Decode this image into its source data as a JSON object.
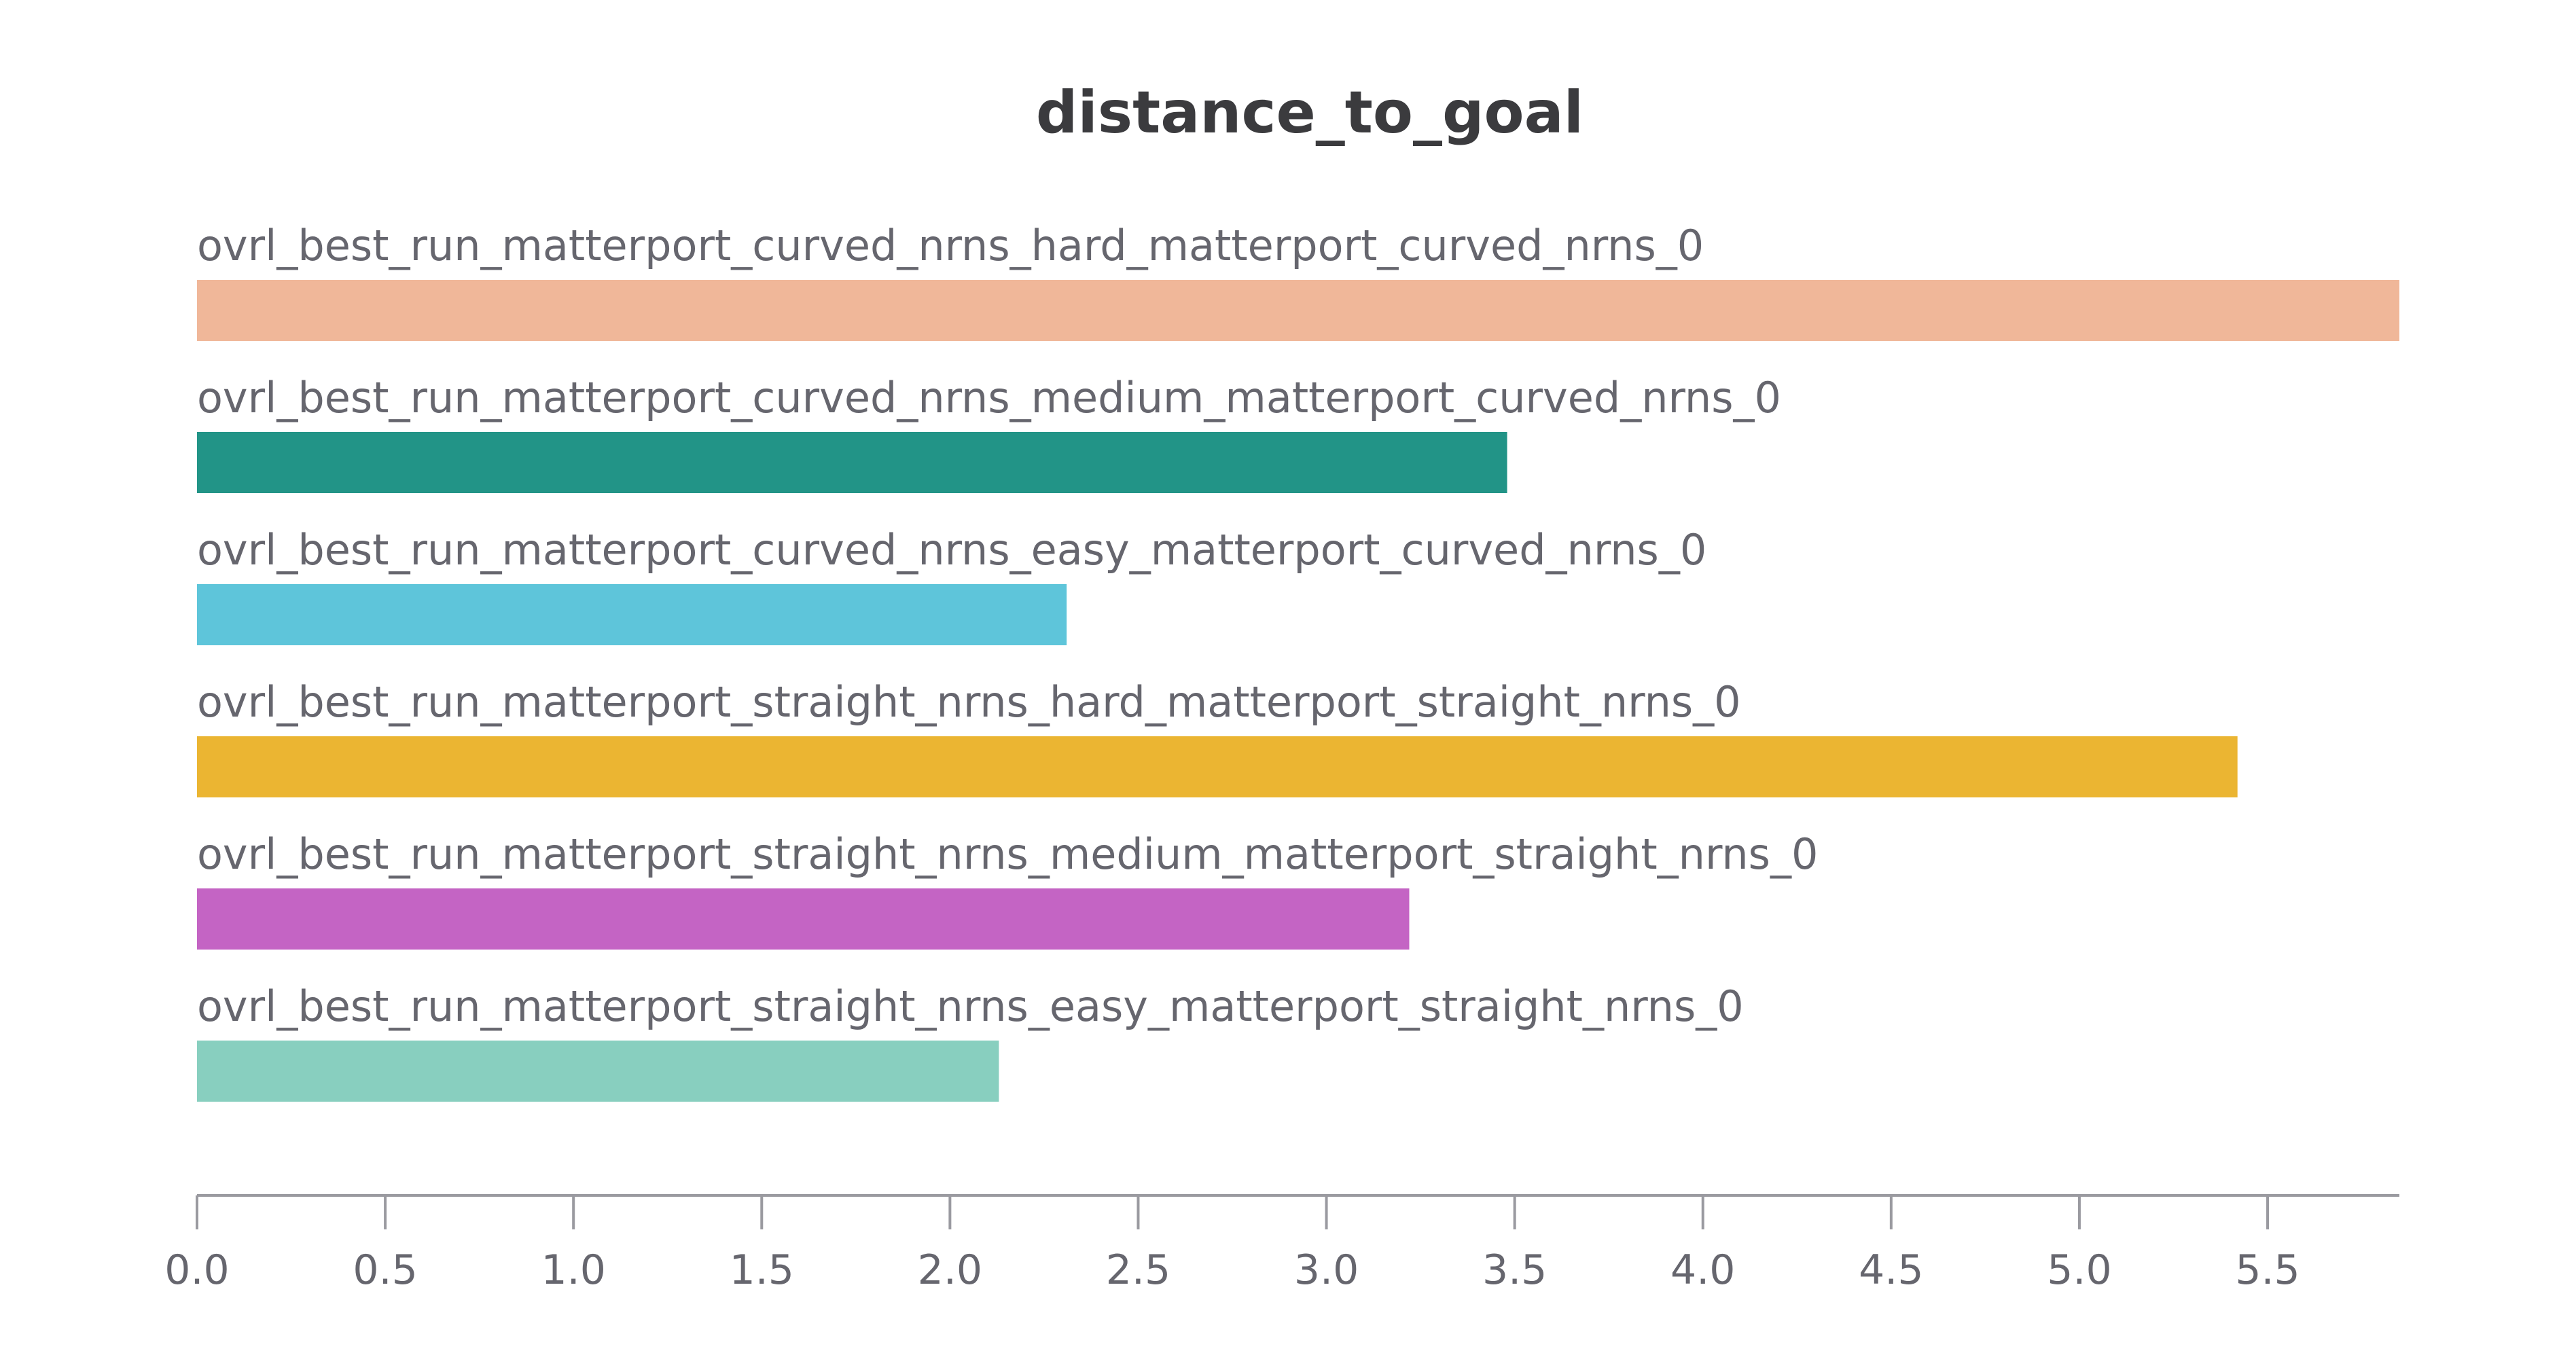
{
  "chart_data": {
    "type": "bar",
    "orientation": "horizontal",
    "title": "distance_to_goal",
    "xlabel": "",
    "ylabel": "",
    "xlim": [
      0,
      5.85
    ],
    "x_ticks": [
      "0.0",
      "0.5",
      "1.0",
      "1.5",
      "2.0",
      "2.5",
      "3.0",
      "3.5",
      "4.0",
      "4.5",
      "5.0",
      "5.5"
    ],
    "grid": false,
    "legend": "none",
    "categories": [
      "ovrl_best_run_matterport_curved_nrns_hard_matterport_curved_nrns_0",
      "ovrl_best_run_matterport_curved_nrns_medium_matterport_curved_nrns_0",
      "ovrl_best_run_matterport_curved_nrns_easy_matterport_curved_nrns_0",
      "ovrl_best_run_matterport_straight_nrns_hard_matterport_straight_nrns_0",
      "ovrl_best_run_matterport_straight_nrns_medium_matterport_straight_nrns_0",
      "ovrl_best_run_matterport_straight_nrns_easy_matterport_straight_nrns_0"
    ],
    "values": [
      5.85,
      3.48,
      2.31,
      5.42,
      3.22,
      2.13
    ],
    "colors": [
      "#f0b799",
      "#229487",
      "#5ec5da",
      "#ebb532",
      "#c464c4",
      "#88cfbf"
    ]
  }
}
